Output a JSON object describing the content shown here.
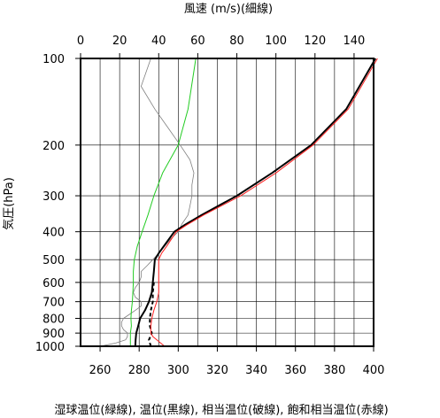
{
  "chart_data": {
    "type": "line",
    "top_axis": {
      "title": "風速 (m/s)(細線)",
      "range": [
        0,
        150
      ],
      "ticks": [
        "0",
        "20",
        "40",
        "60",
        "80",
        "100",
        "120",
        "140"
      ]
    },
    "bottom_axis": {
      "title": "湿球温位(緑線), 温位(黒線), 相当温位(破線), 飽和相当温位(赤線)",
      "range": [
        250,
        400
      ],
      "ticks": [
        "260",
        "280",
        "300",
        "320",
        "340",
        "360",
        "380",
        "400"
      ]
    },
    "left_axis": {
      "title": "気圧(hPa)",
      "range": [
        1000,
        100
      ],
      "scale": "log",
      "ticks": [
        "100",
        "200",
        "300",
        "400",
        "500",
        "600",
        "700",
        "800",
        "900",
        "1000"
      ]
    },
    "grid": true,
    "colors": {
      "wind_speed": "#808080",
      "wet_bulb_potential_temperature": "#22cc22",
      "potential_temperature": "#000000",
      "equivalent_potential_temperature": "#000000",
      "saturated_equivalent_potential_temperature": "#ff2020"
    },
    "series": [
      {
        "key": "wind_speed",
        "axis": "top",
        "style": "thin",
        "pressure": [
          1000,
          975,
          950,
          925,
          900,
          875,
          850,
          825,
          800,
          775,
          750,
          725,
          700,
          675,
          650,
          625,
          600,
          575,
          550,
          525,
          500,
          475,
          450,
          425,
          400,
          375,
          350,
          325,
          300,
          275,
          250,
          225,
          200,
          175,
          150,
          125,
          100
        ],
        "values": [
          10,
          18,
          23,
          24,
          24,
          22,
          21,
          21,
          22,
          25,
          28,
          31,
          31,
          28,
          27,
          28,
          30,
          31,
          31,
          34,
          37,
          40,
          43,
          46,
          50,
          52,
          55,
          56,
          57,
          57,
          58,
          56,
          51,
          45,
          38,
          31,
          36
        ]
      },
      {
        "key": "wet_bulb_potential_temperature",
        "axis": "bottom",
        "pressure": [
          1000,
          950,
          900,
          850,
          800,
          750,
          700,
          650,
          600,
          550,
          500,
          450,
          400,
          350,
          300,
          250,
          200,
          150,
          100
        ],
        "values": [
          275.5,
          275.5,
          275.5,
          276,
          275.8,
          276,
          276.5,
          276.8,
          277,
          277,
          277.5,
          279,
          281.5,
          284.5,
          287.5,
          292,
          300,
          305,
          309
        ]
      },
      {
        "key": "potential_temperature",
        "axis": "bottom",
        "pressure": [
          1000,
          950,
          900,
          850,
          800,
          750,
          700,
          650,
          600,
          550,
          500,
          475,
          450,
          400,
          380,
          350,
          300,
          250,
          200,
          150,
          100
        ],
        "values": [
          278,
          278.2,
          278.5,
          279.5,
          280.5,
          283,
          285,
          286.5,
          287,
          287.5,
          288,
          290,
          292.5,
          298,
          303,
          312,
          330,
          348,
          368,
          386,
          401
        ]
      },
      {
        "key": "equivalent_potential_temperature",
        "axis": "bottom",
        "style": "dashed",
        "pressure": [
          1000,
          950,
          900,
          850,
          800,
          750,
          700,
          650,
          600
        ],
        "values": [
          286,
          285,
          286.5,
          285.5,
          285.5,
          286,
          287,
          287,
          287.5
        ]
      },
      {
        "key": "saturated_equivalent_potential_temperature",
        "axis": "bottom",
        "pressure": [
          1000,
          975,
          950,
          925,
          900,
          850,
          800,
          750,
          700,
          650,
          600,
          550,
          500,
          475,
          450,
          400,
          380,
          350,
          300,
          250,
          200,
          150,
          100
        ],
        "values": [
          293,
          291,
          289,
          287,
          286,
          286,
          286.5,
          287.5,
          289,
          290,
          290,
          290,
          290,
          291.5,
          294,
          299,
          304,
          313,
          332,
          350,
          369,
          387,
          402
        ]
      }
    ]
  }
}
